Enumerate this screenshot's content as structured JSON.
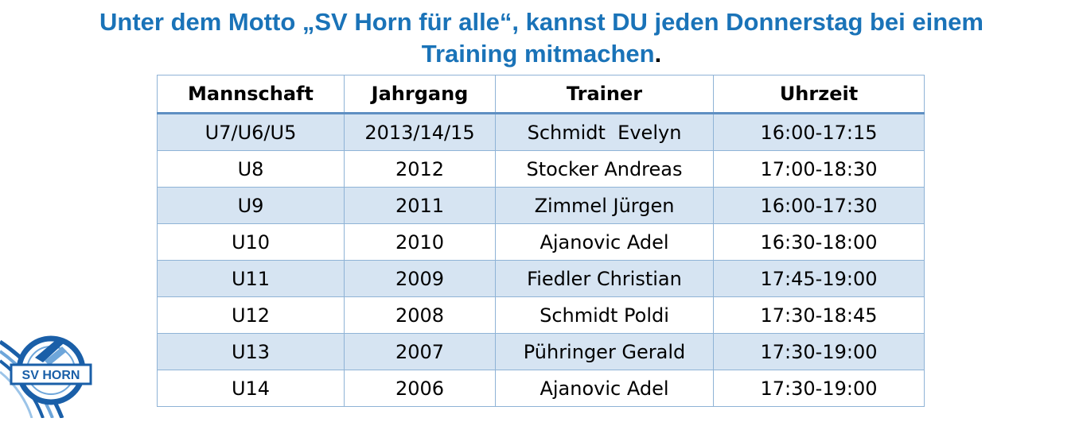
{
  "headline": {
    "line1": "Unter dem Motto „SV Horn für alle“, kannst DU jeden Donnerstag bei einem",
    "line2": "Training mitmachen",
    "period": "."
  },
  "table": {
    "headers": [
      "Mannschaft",
      "Jahrgang",
      "Trainer",
      "Uhrzeit"
    ],
    "rows": [
      [
        "U7/U6/U5",
        "2013/14/15",
        "Schmidt  Evelyn",
        "16:00-17:15"
      ],
      [
        "U8",
        "2012",
        "Stocker Andreas",
        "17:00-18:30"
      ],
      [
        "U9",
        "2011",
        "Zimmel Jürgen",
        "16:00-17:30"
      ],
      [
        "U10",
        "2010",
        "Ajanovic Adel",
        "16:30-18:00"
      ],
      [
        "U11",
        "2009",
        "Fiedler Christian",
        "17:45-19:00"
      ],
      [
        "U12",
        "2008",
        "Schmidt Poldi",
        "17:30-18:45"
      ],
      [
        "U13",
        "2007",
        "Pühringer Gerald",
        "17:30-19:00"
      ],
      [
        "U14",
        "2006",
        "Ajanovic Adel",
        "17:30-19:00"
      ]
    ]
  },
  "logo": {
    "text": "SV HORN",
    "icon": "club-crest-icon"
  },
  "colors": {
    "headline": "#1a73b8",
    "row_shade": "#d6e4f2",
    "border": "#8fb3d6",
    "logo_blue": "#1a5fa8"
  }
}
